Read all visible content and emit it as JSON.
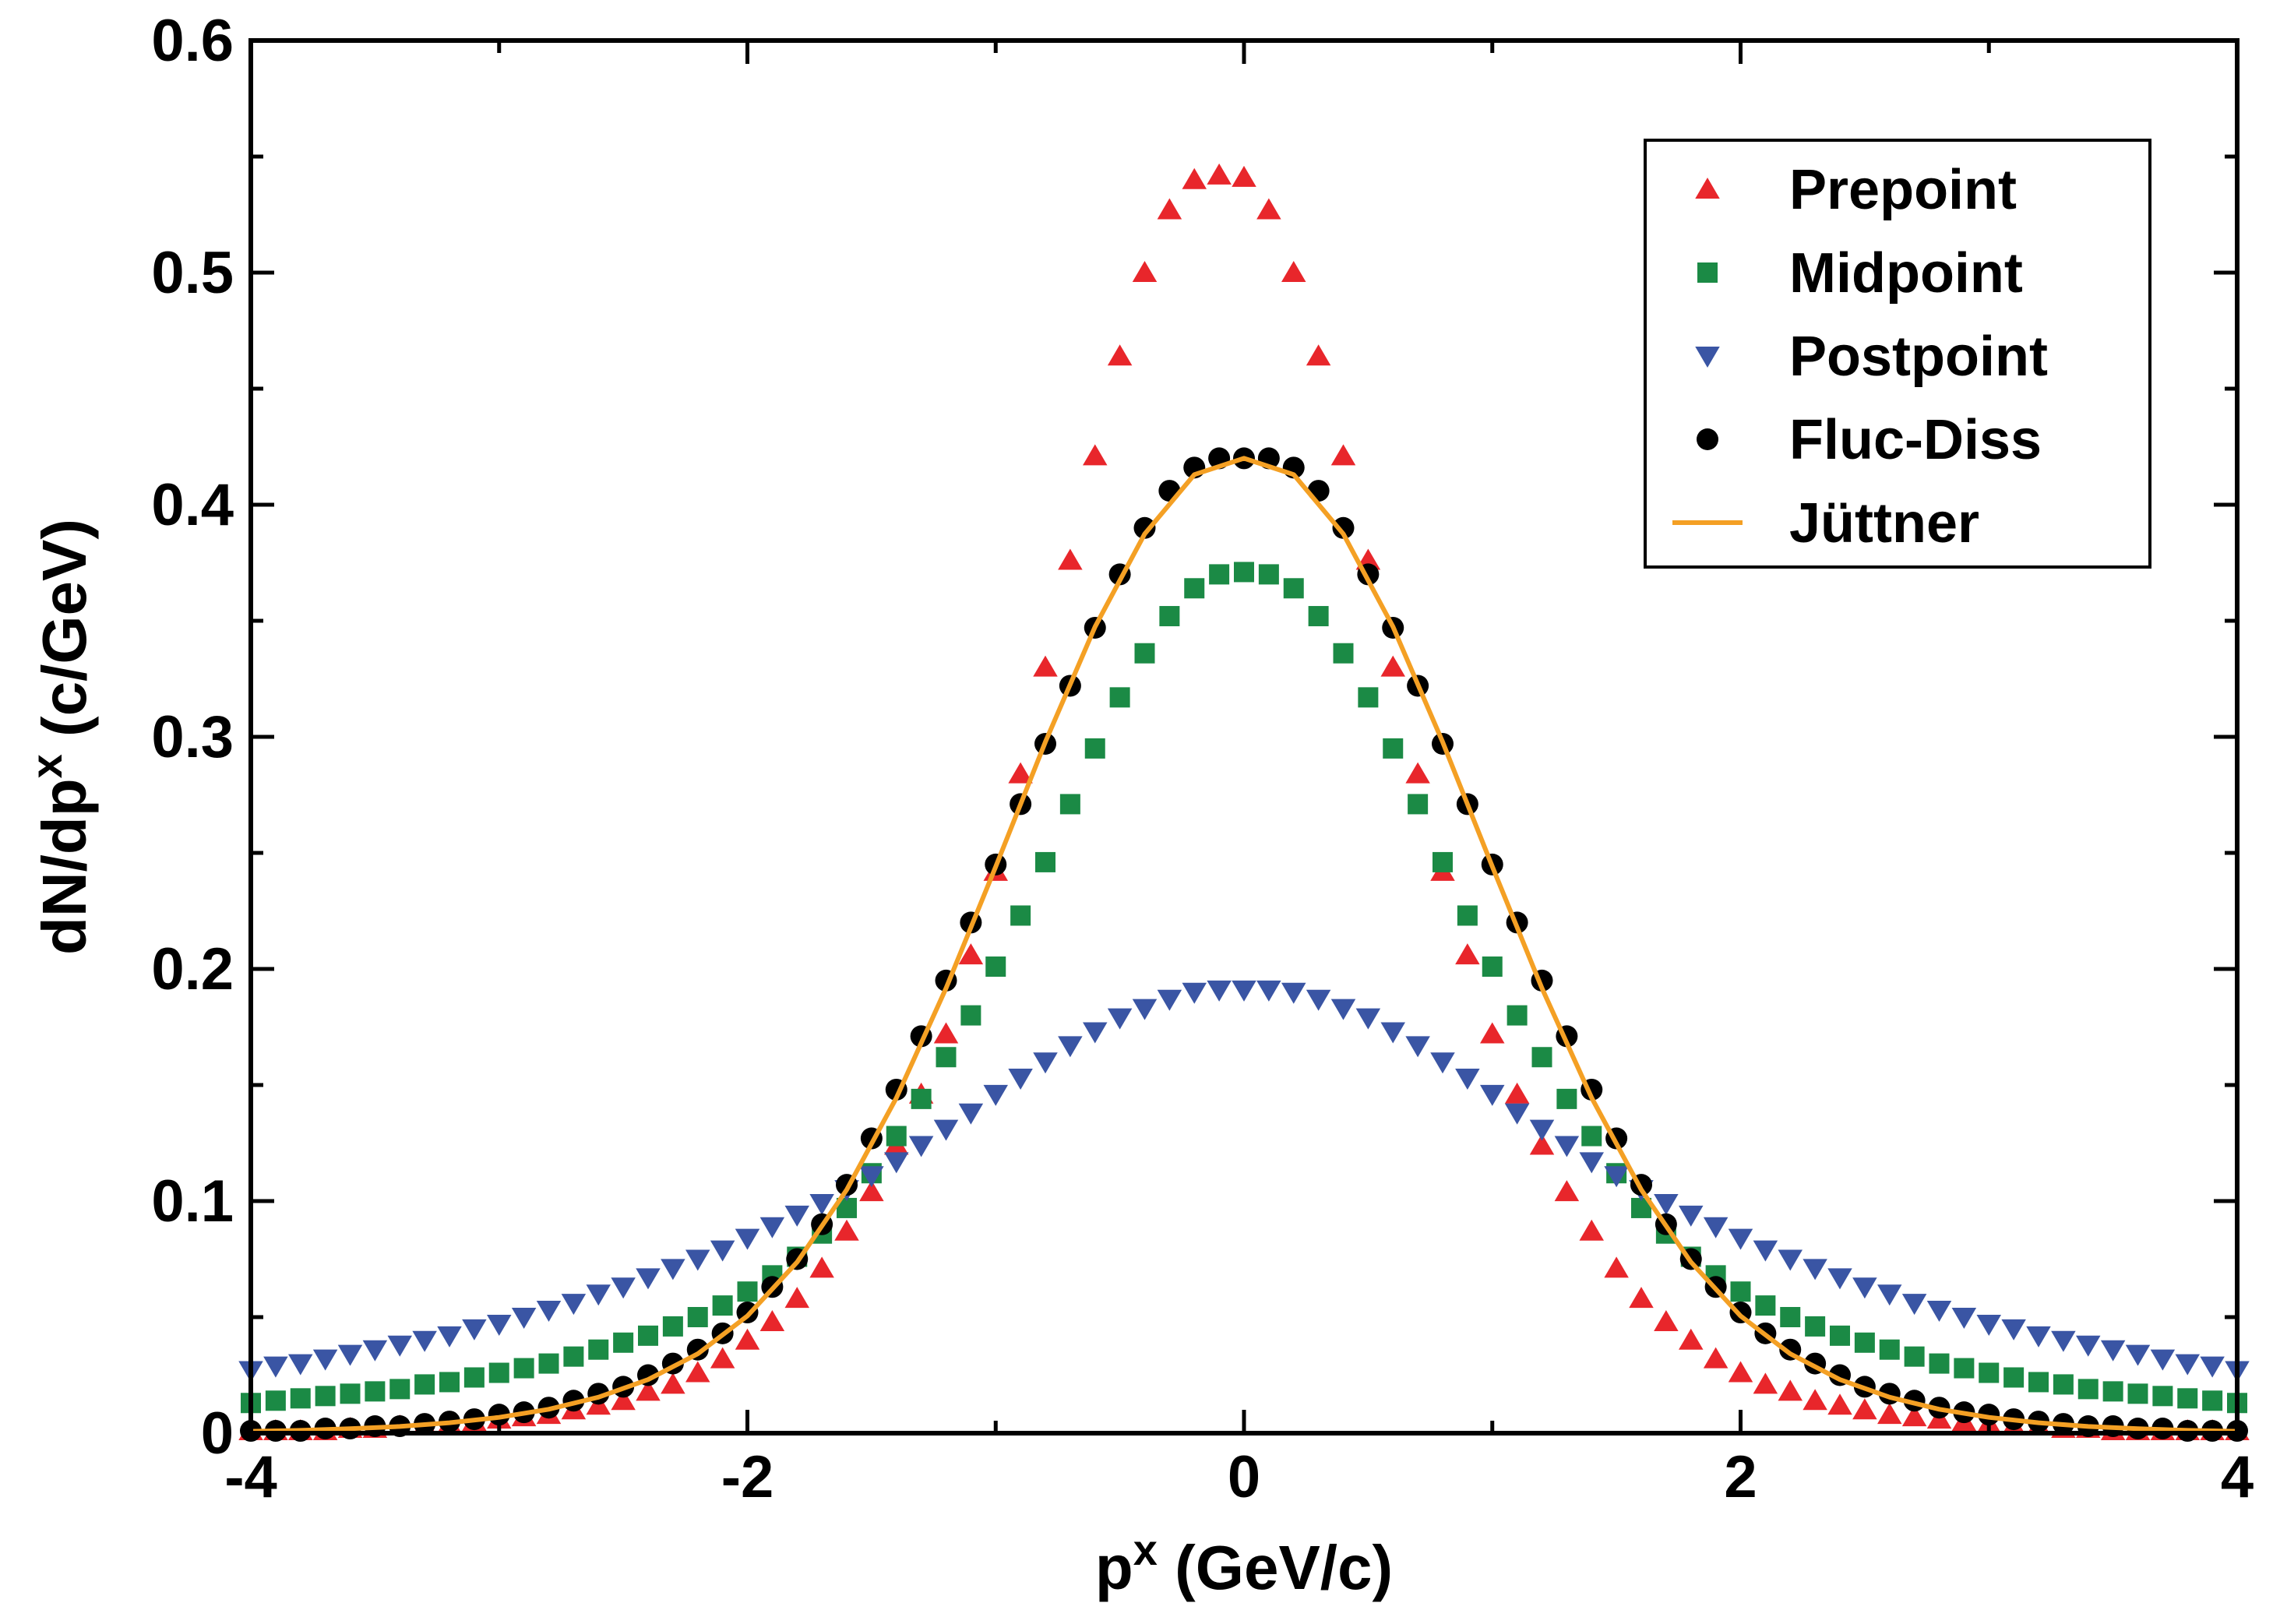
{
  "chart_data": {
    "type": "scatter",
    "xlabel": "p",
    "xlabel_sup": "x",
    "xlabel_unit": " (GeV/c)",
    "ylabel": "dN/dp",
    "ylabel_sup": "x",
    "ylabel_unit": " (c/GeV)",
    "xlim": [
      -4,
      4
    ],
    "ylim": [
      0,
      0.6
    ],
    "x_ticks": [
      {
        "value": -4,
        "label": "-4"
      },
      {
        "value": -2,
        "label": "-2"
      },
      {
        "value": 0,
        "label": "0"
      },
      {
        "value": 2,
        "label": "2"
      },
      {
        "value": 4,
        "label": "4"
      }
    ],
    "y_ticks": [
      {
        "value": 0,
        "label": "0"
      },
      {
        "value": 0.1,
        "label": "0.1"
      },
      {
        "value": 0.2,
        "label": "0.2"
      },
      {
        "value": 0.3,
        "label": "0.3"
      },
      {
        "value": 0.4,
        "label": "0.4"
      },
      {
        "value": 0.5,
        "label": "0.5"
      },
      {
        "value": 0.6,
        "label": "0.6"
      }
    ],
    "grid": false,
    "legend_position": "top-right",
    "series": [
      {
        "name": "Prepoint",
        "marker": "triangle-up",
        "color": "#e8262b",
        "x": [
          -4.0,
          -3.9,
          -3.8,
          -3.7,
          -3.6,
          -3.5,
          -3.4,
          -3.3,
          -3.2,
          -3.1,
          -3.0,
          -2.9,
          -2.8,
          -2.7,
          -2.6,
          -2.5,
          -2.4,
          -2.3,
          -2.2,
          -2.1,
          -2.0,
          -1.9,
          -1.8,
          -1.7,
          -1.6,
          -1.5,
          -1.4,
          -1.3,
          -1.2,
          -1.1,
          -1.0,
          -0.9,
          -0.8,
          -0.7,
          -0.6,
          -0.5,
          -0.4,
          -0.3,
          -0.2,
          -0.1,
          0.0,
          0.1,
          0.2,
          0.3,
          0.4,
          0.5,
          0.6,
          0.7,
          0.8,
          0.9,
          1.0,
          1.1,
          1.2,
          1.3,
          1.4,
          1.5,
          1.6,
          1.7,
          1.8,
          1.9,
          2.0,
          2.1,
          2.2,
          2.3,
          2.4,
          2.5,
          2.6,
          2.7,
          2.8,
          2.9,
          3.0,
          3.1,
          3.2,
          3.3,
          3.4,
          3.5,
          3.6,
          3.7,
          3.8,
          3.9,
          4.0
        ],
        "y": [
          0.001,
          0.001,
          0.001,
          0.001,
          0.002,
          0.002,
          0.003,
          0.003,
          0.004,
          0.005,
          0.006,
          0.007,
          0.008,
          0.01,
          0.012,
          0.014,
          0.018,
          0.021,
          0.026,
          0.032,
          0.04,
          0.048,
          0.058,
          0.071,
          0.087,
          0.104,
          0.124,
          0.146,
          0.172,
          0.206,
          0.242,
          0.284,
          0.33,
          0.376,
          0.421,
          0.464,
          0.5,
          0.527,
          0.54,
          0.542,
          0.541,
          0.527,
          0.5,
          0.464,
          0.421,
          0.376,
          0.33,
          0.284,
          0.242,
          0.206,
          0.172,
          0.146,
          0.124,
          0.104,
          0.087,
          0.071,
          0.058,
          0.048,
          0.04,
          0.032,
          0.026,
          0.021,
          0.018,
          0.014,
          0.012,
          0.01,
          0.008,
          0.007,
          0.006,
          0.005,
          0.004,
          0.003,
          0.003,
          0.002,
          0.002,
          0.001,
          0.001,
          0.001,
          0.001,
          0.001,
          0.001
        ]
      },
      {
        "name": "Midpoint",
        "marker": "square",
        "color": "#1b8a45",
        "x": [
          -4.0,
          -3.9,
          -3.8,
          -3.7,
          -3.6,
          -3.5,
          -3.4,
          -3.3,
          -3.2,
          -3.1,
          -3.0,
          -2.9,
          -2.8,
          -2.7,
          -2.6,
          -2.5,
          -2.4,
          -2.3,
          -2.2,
          -2.1,
          -2.0,
          -1.9,
          -1.8,
          -1.7,
          -1.6,
          -1.5,
          -1.4,
          -1.3,
          -1.2,
          -1.1,
          -1.0,
          -0.9,
          -0.8,
          -0.7,
          -0.6,
          -0.5,
          -0.4,
          -0.3,
          -0.2,
          -0.1,
          0.0,
          0.1,
          0.2,
          0.3,
          0.4,
          0.5,
          0.6,
          0.7,
          0.8,
          0.9,
          1.0,
          1.1,
          1.2,
          1.3,
          1.4,
          1.5,
          1.6,
          1.7,
          1.8,
          1.9,
          2.0,
          2.1,
          2.2,
          2.3,
          2.4,
          2.5,
          2.6,
          2.7,
          2.8,
          2.9,
          3.0,
          3.1,
          3.2,
          3.3,
          3.4,
          3.5,
          3.6,
          3.7,
          3.8,
          3.9,
          4.0
        ],
        "y": [
          0.013,
          0.014,
          0.015,
          0.016,
          0.017,
          0.018,
          0.019,
          0.021,
          0.022,
          0.024,
          0.026,
          0.028,
          0.03,
          0.033,
          0.036,
          0.039,
          0.042,
          0.046,
          0.05,
          0.055,
          0.061,
          0.068,
          0.076,
          0.086,
          0.097,
          0.112,
          0.128,
          0.144,
          0.162,
          0.18,
          0.201,
          0.223,
          0.246,
          0.271,
          0.295,
          0.317,
          0.336,
          0.352,
          0.364,
          0.37,
          0.371,
          0.37,
          0.364,
          0.352,
          0.336,
          0.317,
          0.295,
          0.271,
          0.246,
          0.223,
          0.201,
          0.18,
          0.162,
          0.144,
          0.128,
          0.112,
          0.097,
          0.086,
          0.076,
          0.068,
          0.061,
          0.055,
          0.05,
          0.046,
          0.042,
          0.039,
          0.036,
          0.033,
          0.03,
          0.028,
          0.026,
          0.024,
          0.022,
          0.021,
          0.019,
          0.018,
          0.017,
          0.016,
          0.015,
          0.014,
          0.013
        ]
      },
      {
        "name": "Postpoint",
        "marker": "triangle-down",
        "color": "#3a55a4",
        "x": [
          -4.0,
          -3.9,
          -3.8,
          -3.7,
          -3.6,
          -3.5,
          -3.4,
          -3.3,
          -3.2,
          -3.1,
          -3.0,
          -2.9,
          -2.8,
          -2.7,
          -2.6,
          -2.5,
          -2.4,
          -2.3,
          -2.2,
          -2.1,
          -2.0,
          -1.9,
          -1.8,
          -1.7,
          -1.6,
          -1.5,
          -1.4,
          -1.3,
          -1.2,
          -1.1,
          -1.0,
          -0.9,
          -0.8,
          -0.7,
          -0.6,
          -0.5,
          -0.4,
          -0.3,
          -0.2,
          -0.1,
          0.0,
          0.1,
          0.2,
          0.3,
          0.4,
          0.5,
          0.6,
          0.7,
          0.8,
          0.9,
          1.0,
          1.1,
          1.2,
          1.3,
          1.4,
          1.5,
          1.6,
          1.7,
          1.8,
          1.9,
          2.0,
          2.1,
          2.2,
          2.3,
          2.4,
          2.5,
          2.6,
          2.7,
          2.8,
          2.9,
          3.0,
          3.1,
          3.2,
          3.3,
          3.4,
          3.5,
          3.6,
          3.7,
          3.8,
          3.9,
          4.0
        ],
        "y": [
          0.027,
          0.029,
          0.03,
          0.032,
          0.034,
          0.036,
          0.038,
          0.04,
          0.042,
          0.045,
          0.047,
          0.05,
          0.053,
          0.056,
          0.06,
          0.063,
          0.067,
          0.071,
          0.075,
          0.079,
          0.084,
          0.089,
          0.094,
          0.099,
          0.105,
          0.111,
          0.117,
          0.124,
          0.131,
          0.138,
          0.146,
          0.153,
          0.16,
          0.167,
          0.173,
          0.179,
          0.183,
          0.187,
          0.19,
          0.191,
          0.191,
          0.191,
          0.19,
          0.187,
          0.183,
          0.179,
          0.173,
          0.167,
          0.16,
          0.153,
          0.146,
          0.138,
          0.131,
          0.124,
          0.117,
          0.111,
          0.105,
          0.099,
          0.094,
          0.089,
          0.084,
          0.079,
          0.075,
          0.071,
          0.067,
          0.063,
          0.06,
          0.056,
          0.053,
          0.05,
          0.047,
          0.045,
          0.042,
          0.04,
          0.038,
          0.036,
          0.034,
          0.032,
          0.03,
          0.029,
          0.027
        ]
      },
      {
        "name": "Fluc-Diss",
        "marker": "circle",
        "color": "#000000",
        "x": [
          -4.0,
          -3.9,
          -3.8,
          -3.7,
          -3.6,
          -3.5,
          -3.4,
          -3.3,
          -3.2,
          -3.1,
          -3.0,
          -2.9,
          -2.8,
          -2.7,
          -2.6,
          -2.5,
          -2.4,
          -2.3,
          -2.2,
          -2.1,
          -2.0,
          -1.9,
          -1.8,
          -1.7,
          -1.6,
          -1.5,
          -1.4,
          -1.3,
          -1.2,
          -1.1,
          -1.0,
          -0.9,
          -0.8,
          -0.7,
          -0.6,
          -0.5,
          -0.4,
          -0.3,
          -0.2,
          -0.1,
          0.0,
          0.1,
          0.2,
          0.3,
          0.4,
          0.5,
          0.6,
          0.7,
          0.8,
          0.9,
          1.0,
          1.1,
          1.2,
          1.3,
          1.4,
          1.5,
          1.6,
          1.7,
          1.8,
          1.9,
          2.0,
          2.1,
          2.2,
          2.3,
          2.4,
          2.5,
          2.6,
          2.7,
          2.8,
          2.9,
          3.0,
          3.1,
          3.2,
          3.3,
          3.4,
          3.5,
          3.6,
          3.7,
          3.8,
          3.9,
          4.0
        ],
        "y": [
          0.001,
          0.001,
          0.001,
          0.002,
          0.002,
          0.003,
          0.003,
          0.004,
          0.005,
          0.006,
          0.008,
          0.009,
          0.011,
          0.014,
          0.017,
          0.02,
          0.025,
          0.03,
          0.036,
          0.043,
          0.052,
          0.063,
          0.075,
          0.09,
          0.107,
          0.127,
          0.148,
          0.171,
          0.195,
          0.22,
          0.245,
          0.271,
          0.297,
          0.322,
          0.347,
          0.37,
          0.39,
          0.406,
          0.416,
          0.42,
          0.42,
          0.42,
          0.416,
          0.406,
          0.39,
          0.37,
          0.347,
          0.322,
          0.297,
          0.271,
          0.245,
          0.22,
          0.195,
          0.171,
          0.148,
          0.127,
          0.107,
          0.09,
          0.075,
          0.063,
          0.052,
          0.043,
          0.036,
          0.03,
          0.025,
          0.02,
          0.017,
          0.014,
          0.011,
          0.009,
          0.008,
          0.006,
          0.005,
          0.004,
          0.003,
          0.003,
          0.002,
          0.002,
          0.001,
          0.001,
          0.001
        ]
      },
      {
        "name": "Jüttner",
        "marker": "line",
        "color": "#f4a024",
        "x": [
          -4.0,
          -3.8,
          -3.6,
          -3.4,
          -3.2,
          -3.0,
          -2.8,
          -2.6,
          -2.4,
          -2.2,
          -2.0,
          -1.8,
          -1.6,
          -1.4,
          -1.2,
          -1.0,
          -0.8,
          -0.6,
          -0.4,
          -0.2,
          0.0,
          0.2,
          0.4,
          0.6,
          0.8,
          1.0,
          1.2,
          1.4,
          1.6,
          1.8,
          2.0,
          2.2,
          2.4,
          2.6,
          2.8,
          3.0,
          3.2,
          3.4,
          3.6,
          3.8,
          4.0
        ],
        "y": [
          0.0008,
          0.0012,
          0.0019,
          0.0029,
          0.0045,
          0.0068,
          0.0103,
          0.0155,
          0.0231,
          0.0342,
          0.0505,
          0.0737,
          0.1049,
          0.1445,
          0.1917,
          0.2441,
          0.2978,
          0.3474,
          0.3874,
          0.413,
          0.42,
          0.413,
          0.3874,
          0.3474,
          0.2978,
          0.2441,
          0.1917,
          0.1445,
          0.1049,
          0.0737,
          0.0505,
          0.0342,
          0.0231,
          0.0155,
          0.0103,
          0.0068,
          0.0045,
          0.0029,
          0.0019,
          0.0012,
          0.0008
        ]
      }
    ]
  }
}
